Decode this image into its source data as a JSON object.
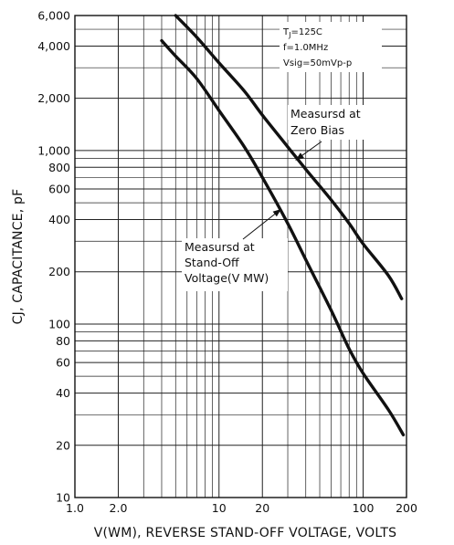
{
  "chart_data": {
    "type": "line",
    "x_scale": "log",
    "y_scale": "log",
    "xlim": [
      1,
      200
    ],
    "ylim": [
      10,
      6000
    ],
    "grid": true,
    "xlabel": "V(WM), REVERSE STAND-OFF VOLTAGE, VOLTS",
    "ylabel": "CJ, CAPACITANCE, pF",
    "x_ticks": [
      {
        "value": 1,
        "label": "1.0"
      },
      {
        "value": 2,
        "label": "2.0"
      },
      {
        "value": 10,
        "label": "10"
      },
      {
        "value": 20,
        "label": "20"
      },
      {
        "value": 100,
        "label": "100"
      },
      {
        "value": 200,
        "label": "200"
      }
    ],
    "y_ticks": [
      {
        "value": 10,
        "label": "10"
      },
      {
        "value": 20,
        "label": "20"
      },
      {
        "value": 40,
        "label": "40"
      },
      {
        "value": 60,
        "label": "60"
      },
      {
        "value": 80,
        "label": "80"
      },
      {
        "value": 100,
        "label": "100"
      },
      {
        "value": 200,
        "label": "200"
      },
      {
        "value": 400,
        "label": "400"
      },
      {
        "value": 600,
        "label": "600"
      },
      {
        "value": 800,
        "label": "800"
      },
      {
        "value": 1000,
        "label": "1,000"
      },
      {
        "value": 2000,
        "label": "2,000"
      },
      {
        "value": 4000,
        "label": "4,000"
      },
      {
        "value": 6000,
        "label": "6,000"
      }
    ],
    "conditions": [
      "TJ=125C",
      "f=1.0MHz",
      "Vsig=50mVp-p"
    ],
    "series": [
      {
        "name": "Measursd at Zero Bias",
        "points": [
          [
            5.0,
            6000
          ],
          [
            7,
            4500
          ],
          [
            10,
            3200
          ],
          [
            15,
            2200
          ],
          [
            20,
            1600
          ],
          [
            30,
            1050
          ],
          [
            40,
            780
          ],
          [
            60,
            520
          ],
          [
            80,
            380
          ],
          [
            100,
            290
          ],
          [
            150,
            190
          ],
          [
            185,
            140
          ]
        ]
      },
      {
        "name": "Measursd at Stand-Off Voltage(V MW)",
        "points": [
          [
            4.0,
            4300
          ],
          [
            5,
            3500
          ],
          [
            7,
            2600
          ],
          [
            10,
            1700
          ],
          [
            15,
            1050
          ],
          [
            20,
            700
          ],
          [
            30,
            380
          ],
          [
            40,
            235
          ],
          [
            60,
            120
          ],
          [
            80,
            72
          ],
          [
            100,
            52
          ],
          [
            150,
            32
          ],
          [
            190,
            23
          ]
        ]
      }
    ],
    "annotations": [
      {
        "lines": [
          "Measursd at",
          "Zero Bias"
        ],
        "points_to": [
          34,
          880
        ]
      },
      {
        "lines": [
          "Measursd at",
          "Stand-Off",
          "Voltage(V MW)"
        ],
        "points_to": [
          27,
          460
        ]
      }
    ]
  }
}
